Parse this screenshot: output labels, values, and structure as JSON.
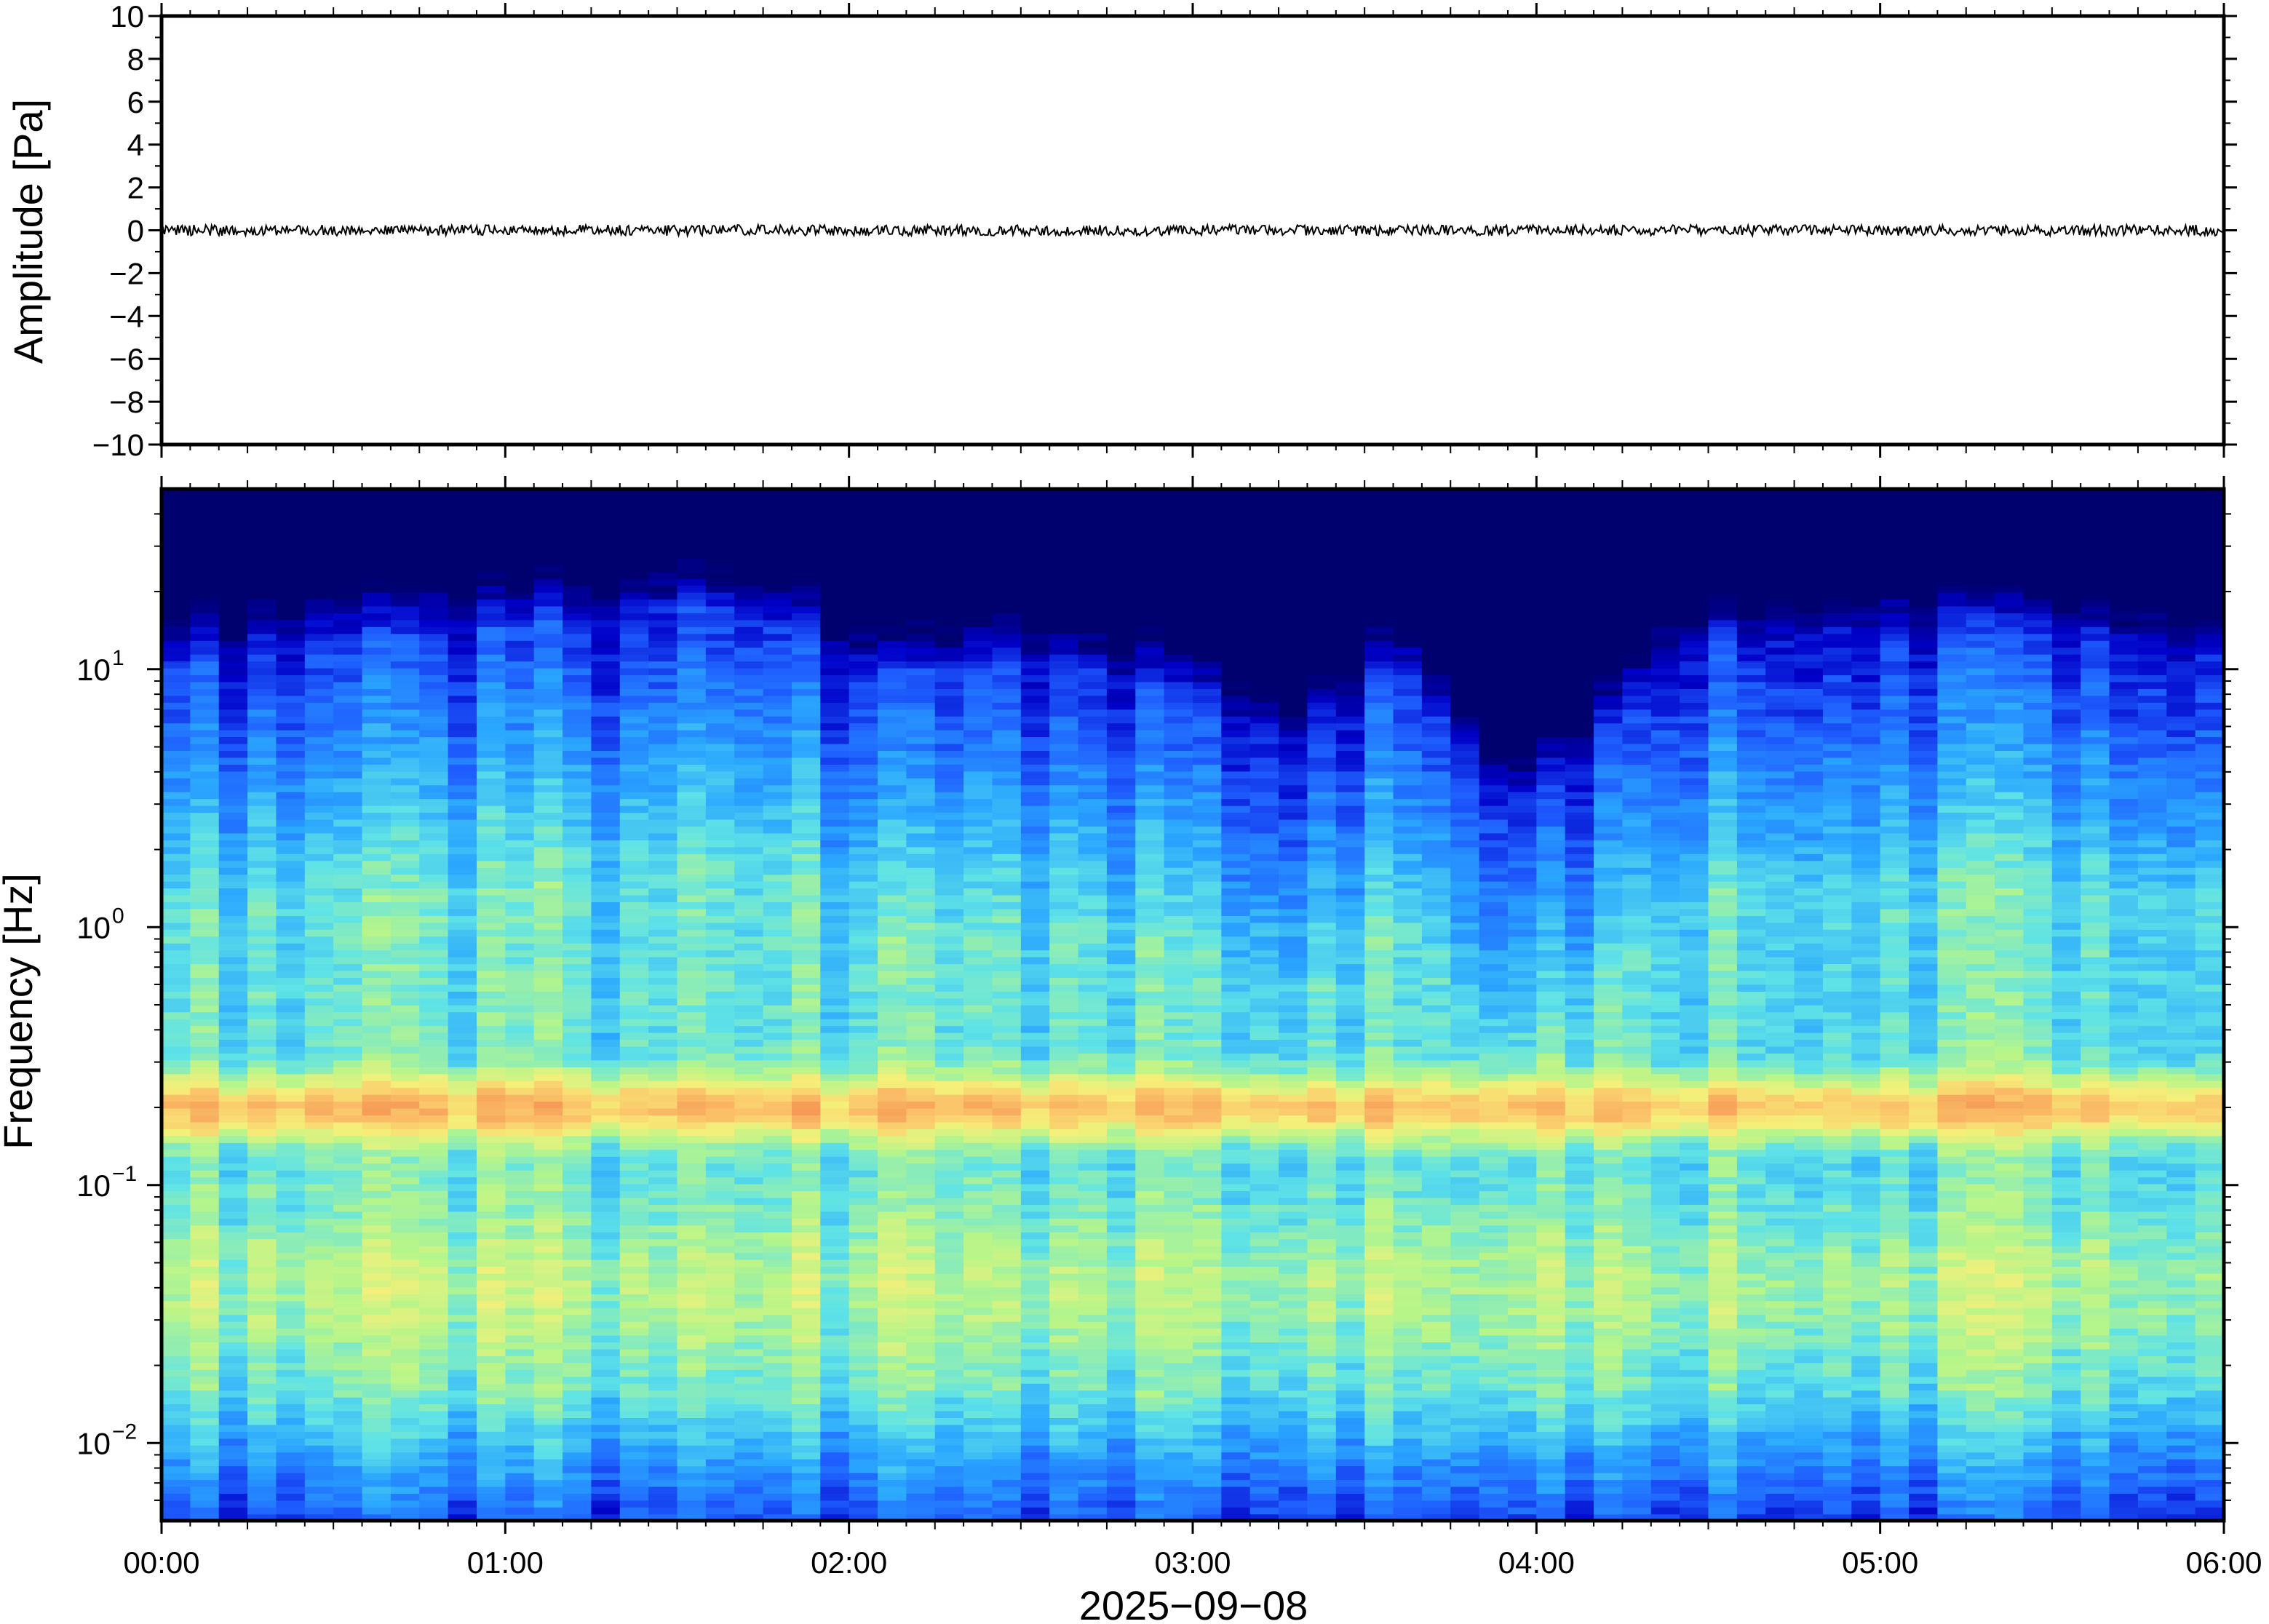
{
  "chart_data": [
    {
      "type": "line",
      "panel": "waveform",
      "ylabel": "Amplitude [Pa]",
      "ylim": [
        -10,
        10
      ],
      "yticks": [
        10,
        8,
        6,
        4,
        2,
        0,
        -2,
        -4,
        -6,
        -8,
        -10
      ],
      "ytick_labels": [
        "10",
        "8",
        "6",
        "4",
        "2",
        "0",
        "−2",
        "−4",
        "−6",
        "−8",
        "−10"
      ],
      "xlim_hours": [
        0,
        6
      ],
      "trace_color": "#000000",
      "trace_description_level": 0,
      "trace_peak_abs": 0.25
    },
    {
      "type": "heatmap",
      "panel": "spectrogram",
      "ylabel": "Frequency [Hz]",
      "yscale": "log",
      "ylim": [
        0.005,
        50
      ],
      "yticks": [
        0.01,
        0.1,
        1,
        10
      ],
      "ytick_labels": [
        {
          "base": "10",
          "exp": "−2"
        },
        {
          "base": "10",
          "exp": "−1"
        },
        {
          "base": "10",
          "exp": "0"
        },
        {
          "base": "10",
          "exp": "1"
        }
      ],
      "xlabel": "2025−09−08",
      "xlim_hours": [
        0,
        6
      ],
      "xticks": [
        "00:00",
        "01:00",
        "02:00",
        "03:00",
        "04:00",
        "05:00",
        "06:00"
      ],
      "colormap": [
        "#00006e",
        "#0000c8",
        "#1f5fff",
        "#2aa7ff",
        "#5fe3e6",
        "#b6f58a",
        "#f5f07a",
        "#fbc46a",
        "#f59a56"
      ],
      "cutoff_high_freq_hz_by_hour": [
        [
          0.0,
          11
        ],
        [
          0.5,
          13
        ],
        [
          1.0,
          14
        ],
        [
          1.5,
          17
        ],
        [
          1.75,
          16
        ],
        [
          2.1,
          9
        ],
        [
          2.5,
          11
        ],
        [
          3.0,
          8
        ],
        [
          3.3,
          5
        ],
        [
          3.6,
          11
        ],
        [
          3.9,
          3
        ],
        [
          4.1,
          4
        ],
        [
          4.4,
          12
        ],
        [
          5.0,
          14
        ],
        [
          5.5,
          13
        ],
        [
          6.0,
          12
        ]
      ],
      "microseism_peak_hz": 0.2
    }
  ]
}
